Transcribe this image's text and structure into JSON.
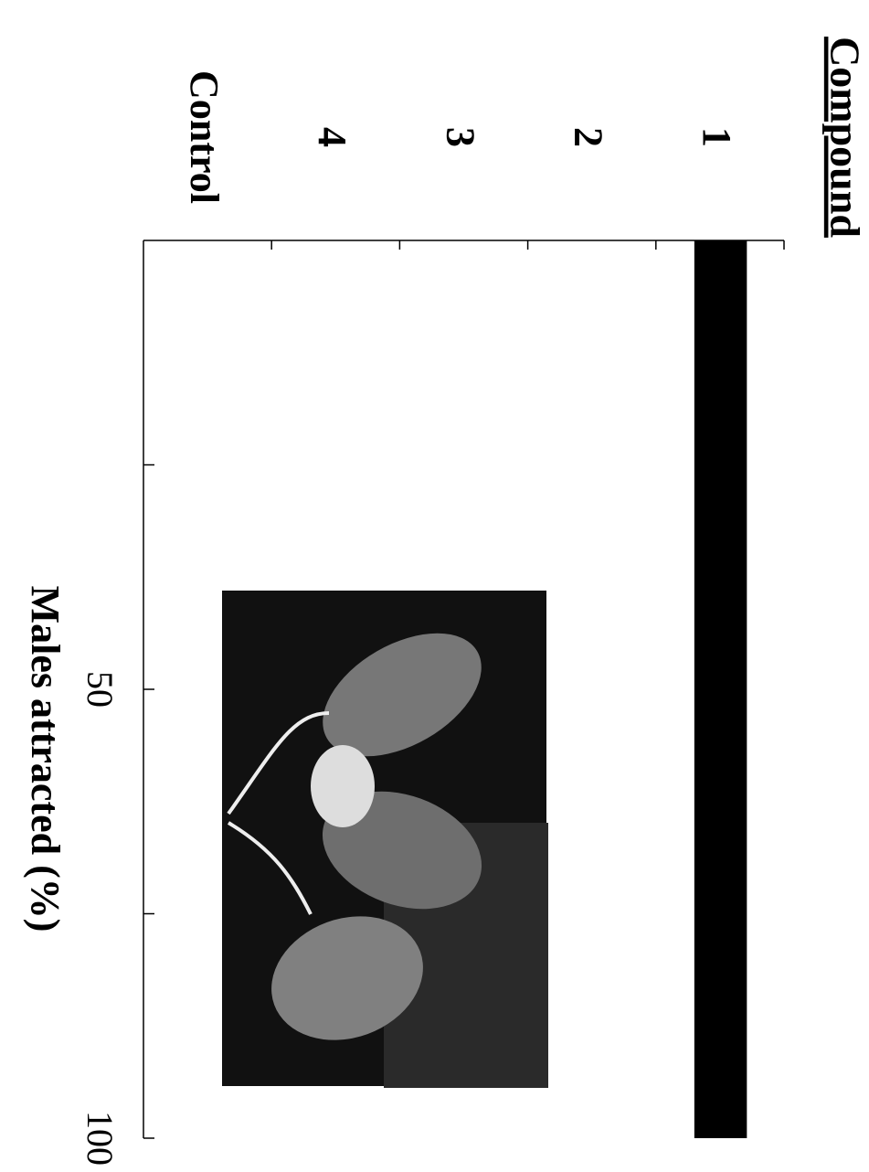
{
  "chart_data": {
    "type": "bar",
    "title": "Compound",
    "categories": [
      "1",
      "2",
      "3",
      "4",
      "Control"
    ],
    "values": [
      100,
      0,
      0,
      0,
      0
    ],
    "color": "#000000",
    "ylim": [
      0,
      100
    ],
    "yticks": [
      50,
      100
    ],
    "minor_yticks": [
      25,
      75
    ],
    "y_label": "Males attracted (%)"
  }
}
